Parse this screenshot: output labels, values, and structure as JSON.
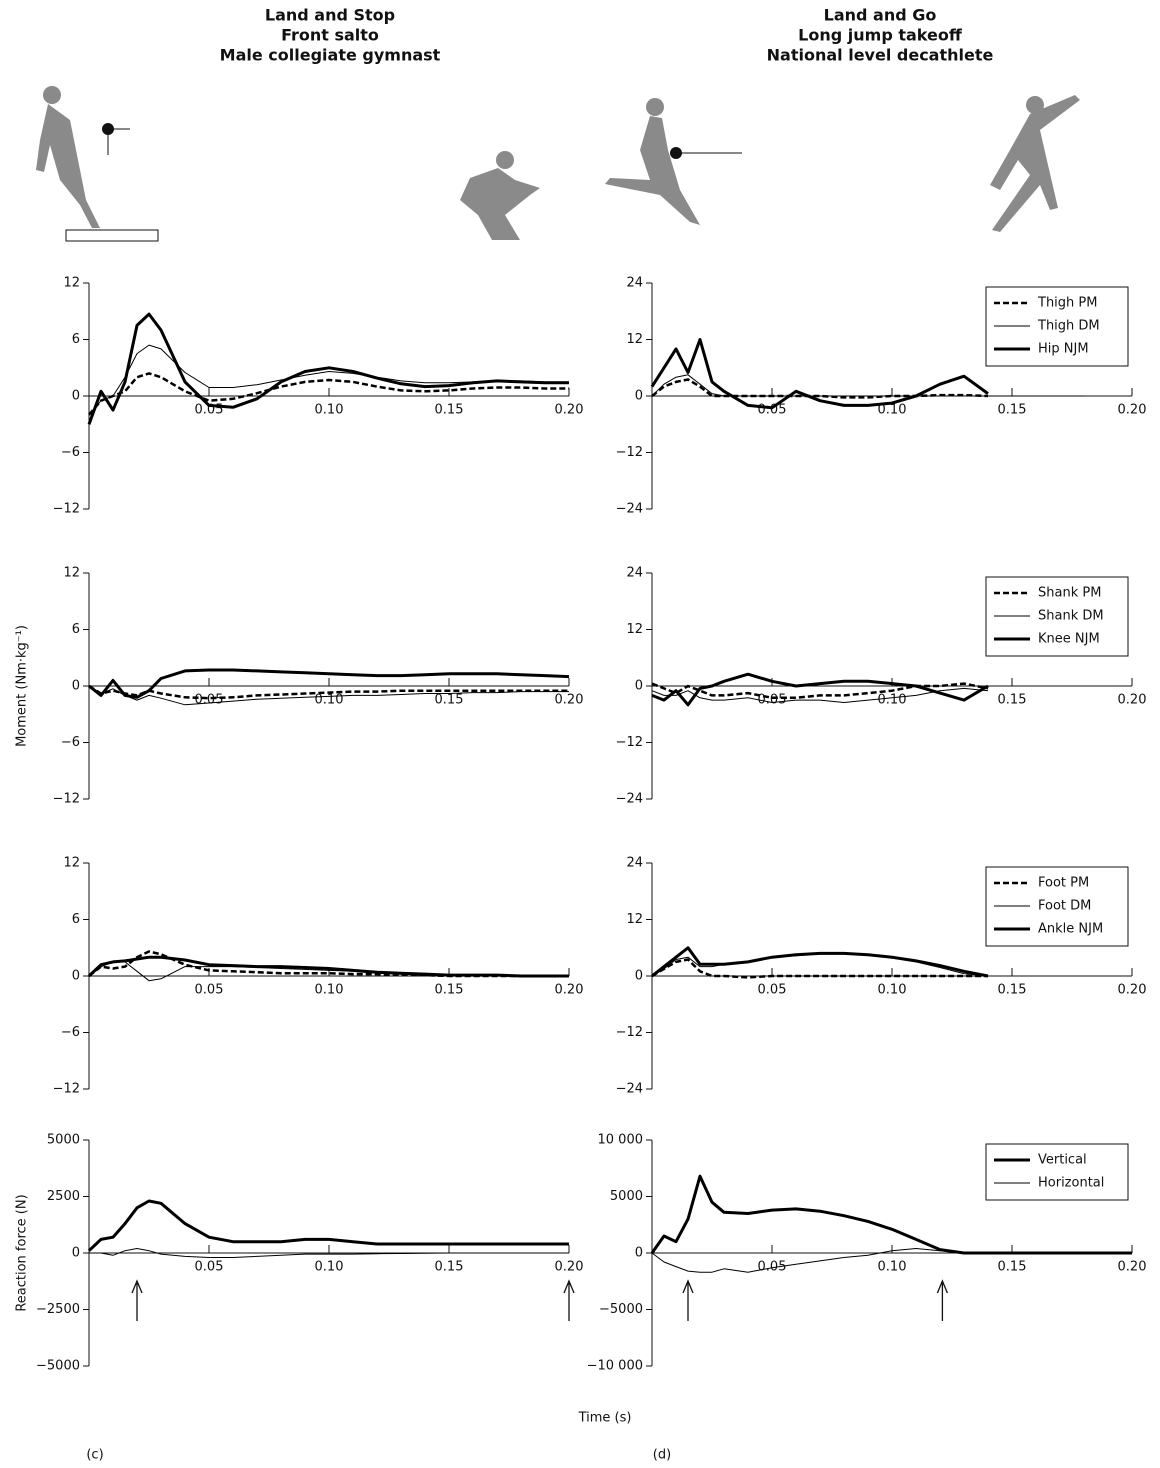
{
  "columns": [
    {
      "title": [
        "Land and Stop",
        "Front salto",
        "Male collegiate gymnast"
      ],
      "panel": "(c)"
    },
    {
      "title": [
        "Land and Go",
        "Long jump takeoff",
        "National level decathlete"
      ],
      "panel": "(d)"
    }
  ],
  "y_labels": {
    "moment": "Moment (Nm·kg⁻¹)",
    "force": "Reaction force (N)"
  },
  "x_label": "Time (s)",
  "chart_data": [
    {
      "type": "line",
      "x": [
        0,
        0.005,
        0.01,
        0.015,
        0.02,
        0.025,
        0.03,
        0.04,
        0.05,
        0.06,
        0.07,
        0.08,
        0.09,
        0.1,
        0.11,
        0.12,
        0.13,
        0.14,
        0.15,
        0.16,
        0.17,
        0.18,
        0.19,
        0.2
      ],
      "xlim": [
        0,
        0.2
      ],
      "xticks": [
        0.05,
        {
          "value": 0.1,
          "label": "0.10"
        },
        0.15,
        {
          "value": 0.2,
          "label": "0.20"
        }
      ],
      "ylim": [
        -12,
        12
      ],
      "yticks": [
        12,
        6,
        0,
        {
          "value": -6,
          "label": "−6"
        },
        {
          "value": -12,
          "label": "−12"
        }
      ],
      "series": [
        {
          "color": "#000",
          "width": 2.5,
          "dash": true,
          "values": [
            -2,
            -0.5,
            0,
            0.5,
            2,
            2.4,
            2,
            0.5,
            -0.5,
            -0.3,
            0.3,
            1,
            1.5,
            1.7,
            1.5,
            1,
            0.6,
            0.5,
            0.6,
            0.8,
            0.9,
            0.9,
            0.8,
            0.8
          ]
        },
        {
          "color": "#000",
          "width": 1,
          "dash": false,
          "values": [
            -2,
            -0.5,
            0,
            2,
            4.5,
            5.4,
            5,
            2.5,
            0.9,
            0.9,
            1.2,
            1.7,
            2.2,
            2.6,
            2.4,
            2,
            1.6,
            1.4,
            1.4,
            1.5,
            1.6,
            1.6,
            1.5,
            1.5
          ]
        },
        {
          "color": "#000",
          "width": 3,
          "dash": false,
          "values": [
            -3,
            0.5,
            -1.5,
            1.5,
            7.5,
            8.7,
            7,
            1.5,
            -1,
            -1.2,
            -0.3,
            1.5,
            2.6,
            3,
            2.6,
            1.9,
            1.3,
            1,
            1.1,
            1.4,
            1.6,
            1.5,
            1.4,
            1.4
          ]
        }
      ]
    },
    {
      "type": "line",
      "x": [
        0,
        0.005,
        0.01,
        0.015,
        0.02,
        0.025,
        0.03,
        0.04,
        0.05,
        0.06,
        0.07,
        0.08,
        0.09,
        0.1,
        0.11,
        0.12,
        0.13,
        0.14,
        0.15,
        0.16,
        0.17,
        0.18,
        0.19,
        0.2
      ],
      "xlim": [
        0,
        0.2
      ],
      "xticks": [
        0.05,
        {
          "value": 0.1,
          "label": "0.10"
        },
        0.15,
        {
          "value": 0.2,
          "label": "0.20"
        }
      ],
      "ylim": [
        -24,
        24
      ],
      "yticks": [
        24,
        12,
        0,
        {
          "value": -12,
          "label": "−12"
        },
        {
          "value": -24,
          "label": "−24"
        }
      ],
      "legend": "upper right",
      "series": [
        {
          "name": "Thigh PM",
          "color": "#000",
          "width": 2.5,
          "dash": true,
          "values": [
            0,
            2,
            3,
            3.5,
            2,
            0,
            0,
            0,
            0,
            0,
            0,
            -0.3,
            -0.3,
            0,
            0,
            0.2,
            0.2,
            0,
            null,
            null,
            null,
            null,
            null,
            null
          ]
        },
        {
          "name": "Thigh DM",
          "color": "#000",
          "width": 1,
          "dash": false,
          "values": [
            0,
            2.5,
            4,
            4.5,
            2.5,
            0.5,
            0,
            0,
            0,
            0,
            0,
            0,
            0,
            0,
            0,
            0,
            0,
            0,
            0,
            0,
            0,
            0,
            null,
            null
          ]
        },
        {
          "name": "Hip NJM",
          "color": "#000",
          "width": 3,
          "dash": false,
          "values": [
            2,
            6,
            10,
            5,
            12,
            3,
            1,
            -2,
            -2.5,
            1,
            -1,
            -2,
            -2,
            -1.5,
            0,
            2.5,
            4.2,
            0.5,
            null,
            null,
            null,
            null,
            null,
            null
          ]
        }
      ]
    },
    {
      "type": "line",
      "x": [
        0,
        0.005,
        0.01,
        0.015,
        0.02,
        0.025,
        0.03,
        0.04,
        0.05,
        0.06,
        0.07,
        0.08,
        0.09,
        0.1,
        0.11,
        0.12,
        0.13,
        0.14,
        0.15,
        0.16,
        0.17,
        0.18,
        0.19,
        0.2
      ],
      "xlim": [
        0,
        0.2
      ],
      "xticks": [
        0.05,
        {
          "value": 0.1,
          "label": "0.10"
        },
        0.15,
        {
          "value": 0.2,
          "label": "0.20"
        }
      ],
      "ylim": [
        -12,
        12
      ],
      "yticks": [
        12,
        6,
        0,
        {
          "value": -6,
          "label": "−6"
        },
        {
          "value": -12,
          "label": "−12"
        }
      ],
      "series": [
        {
          "color": "#000",
          "width": 2.5,
          "dash": true,
          "values": [
            0,
            -0.8,
            -0.5,
            -0.8,
            -1,
            -0.5,
            -0.8,
            -1.2,
            -1.3,
            -1.2,
            -1,
            -0.9,
            -0.8,
            -0.7,
            -0.6,
            -0.6,
            -0.5,
            -0.5,
            -0.5,
            -0.5,
            -0.5,
            -0.5,
            -0.5,
            -0.5
          ]
        },
        {
          "color": "#000",
          "width": 1,
          "dash": false,
          "values": [
            0,
            -0.8,
            -0.3,
            -1,
            -1.5,
            -1,
            -1.3,
            -2,
            -1.8,
            -1.6,
            -1.4,
            -1.3,
            -1.2,
            -1.1,
            -1,
            -1,
            -0.9,
            -0.8,
            -0.8,
            -0.7,
            -0.7,
            -0.6,
            -0.6,
            -0.6
          ]
        },
        {
          "color": "#000",
          "width": 3,
          "dash": false,
          "values": [
            0,
            -1,
            0.6,
            -1,
            -1.2,
            -0.5,
            0.8,
            1.6,
            1.7,
            1.7,
            1.6,
            1.5,
            1.4,
            1.3,
            1.2,
            1.1,
            1.1,
            1.2,
            1.3,
            1.3,
            1.3,
            1.2,
            1.1,
            1
          ]
        }
      ]
    },
    {
      "type": "line",
      "x": [
        0,
        0.005,
        0.01,
        0.015,
        0.02,
        0.025,
        0.03,
        0.04,
        0.05,
        0.06,
        0.07,
        0.08,
        0.09,
        0.1,
        0.11,
        0.12,
        0.13,
        0.14,
        0.15,
        0.16,
        0.17,
        0.18,
        0.19,
        0.2
      ],
      "xlim": [
        0,
        0.2
      ],
      "xticks": [
        0.05,
        {
          "value": 0.1,
          "label": "0.10"
        },
        0.15,
        {
          "value": 0.2,
          "label": "0.20"
        }
      ],
      "ylim": [
        -24,
        24
      ],
      "yticks": [
        24,
        12,
        0,
        {
          "value": -12,
          "label": "−12"
        },
        {
          "value": -24,
          "label": "−24"
        }
      ],
      "legend": "upper right",
      "series": [
        {
          "name": "Shank PM",
          "color": "#000",
          "width": 2.5,
          "dash": true,
          "values": [
            0.5,
            -0.5,
            -1.5,
            0,
            -1,
            -2,
            -2,
            -1.5,
            -2.5,
            -2.5,
            -2,
            -2,
            -1.5,
            -1,
            0,
            0,
            0.5,
            -0.5,
            null,
            null,
            null,
            null,
            null,
            null
          ]
        },
        {
          "name": "Shank DM",
          "color": "#000",
          "width": 1,
          "dash": false,
          "values": [
            -1,
            -2,
            -2,
            -1,
            -2.5,
            -3,
            -3,
            -2.5,
            -3.5,
            -3,
            -3,
            -3.5,
            -3,
            -2.5,
            -2,
            -1,
            -0.5,
            -1,
            null,
            null,
            null,
            null,
            null,
            null
          ]
        },
        {
          "name": "Knee NJM",
          "color": "#000",
          "width": 3,
          "dash": false,
          "values": [
            -2,
            -3,
            -1,
            -4,
            -0.5,
            0,
            1,
            2.5,
            1,
            0,
            0.5,
            1,
            1,
            0.5,
            0,
            -1.5,
            -3,
            0,
            null,
            null,
            null,
            null,
            null,
            null
          ]
        }
      ]
    },
    {
      "type": "line",
      "x": [
        0,
        0.005,
        0.01,
        0.015,
        0.02,
        0.025,
        0.03,
        0.04,
        0.05,
        0.06,
        0.07,
        0.08,
        0.09,
        0.1,
        0.11,
        0.12,
        0.13,
        0.14,
        0.15,
        0.16,
        0.17,
        0.18,
        0.19,
        0.2
      ],
      "xlim": [
        0,
        0.2
      ],
      "xticks": [
        0.05,
        {
          "value": 0.1,
          "label": "0.10"
        },
        0.15,
        {
          "value": 0.2,
          "label": "0.20"
        }
      ],
      "ylim": [
        -12,
        12
      ],
      "yticks": [
        12,
        6,
        0,
        {
          "value": -6,
          "label": "−6"
        },
        {
          "value": -12,
          "label": "−12"
        }
      ],
      "series": [
        {
          "color": "#000",
          "width": 2.5,
          "dash": true,
          "values": [
            0,
            1,
            0.8,
            1,
            2,
            2.6,
            2.3,
            1.2,
            0.6,
            0.5,
            0.4,
            0.3,
            0.3,
            0.3,
            0.2,
            0.2,
            0.1,
            0.1,
            0,
            0,
            0,
            0,
            0,
            0
          ]
        },
        {
          "color": "#000",
          "width": 1,
          "dash": false,
          "values": [
            0,
            1,
            1.5,
            1.5,
            0.5,
            -0.5,
            -0.3,
            1,
            1,
            1,
            0.9,
            0.8,
            0.7,
            0.6,
            0.5,
            0.3,
            0.2,
            0.1,
            0.1,
            0,
            0,
            0,
            0,
            0
          ]
        },
        {
          "color": "#000",
          "width": 3,
          "dash": false,
          "values": [
            0,
            1.2,
            1.5,
            1.6,
            1.8,
            2,
            2,
            1.7,
            1.2,
            1.1,
            1,
            1,
            0.9,
            0.8,
            0.6,
            0.4,
            0.3,
            0.2,
            0.1,
            0.1,
            0.1,
            0,
            0,
            0
          ]
        }
      ]
    },
    {
      "type": "line",
      "x": [
        0,
        0.005,
        0.01,
        0.015,
        0.02,
        0.025,
        0.03,
        0.04,
        0.05,
        0.06,
        0.07,
        0.08,
        0.09,
        0.1,
        0.11,
        0.12,
        0.13,
        0.14,
        0.15,
        0.16,
        0.17,
        0.18,
        0.19,
        0.2
      ],
      "xlim": [
        0,
        0.2
      ],
      "xticks": [
        0.05,
        {
          "value": 0.1,
          "label": "0.10"
        },
        0.15,
        {
          "value": 0.2,
          "label": "0.20"
        }
      ],
      "ylim": [
        -24,
        24
      ],
      "yticks": [
        24,
        12,
        0,
        {
          "value": -12,
          "label": "−12"
        },
        {
          "value": -24,
          "label": "−24"
        }
      ],
      "legend": "upper right",
      "series": [
        {
          "name": "Foot PM",
          "color": "#000",
          "width": 2.5,
          "dash": true,
          "values": [
            0,
            1.5,
            3,
            3.5,
            1,
            0,
            0,
            -0.3,
            0,
            0,
            0,
            0,
            0,
            0,
            0,
            0,
            0,
            0,
            null,
            null,
            null,
            null,
            null,
            null
          ]
        },
        {
          "name": "Foot DM",
          "color": "#000",
          "width": 1,
          "dash": false,
          "values": [
            0,
            1.5,
            3.5,
            4,
            2,
            2,
            2.5,
            3,
            4,
            4.3,
            4.7,
            4.7,
            4.4,
            3.8,
            3,
            1.8,
            0.5,
            0,
            null,
            null,
            null,
            null,
            null,
            null
          ]
        },
        {
          "name": "Ankle NJM",
          "color": "#000",
          "width": 3,
          "dash": false,
          "values": [
            0,
            2,
            4,
            6,
            2.5,
            2.5,
            2.5,
            3,
            4,
            4.5,
            4.8,
            4.8,
            4.5,
            4,
            3.2,
            2.2,
            1,
            0,
            null,
            null,
            null,
            null,
            null,
            null
          ]
        }
      ]
    },
    {
      "type": "line",
      "x": [
        0,
        0.005,
        0.01,
        0.015,
        0.02,
        0.025,
        0.03,
        0.04,
        0.05,
        0.06,
        0.07,
        0.08,
        0.09,
        0.1,
        0.11,
        0.12,
        0.13,
        0.14,
        0.15,
        0.16,
        0.17,
        0.18,
        0.19,
        0.2
      ],
      "xlim": [
        0,
        0.2
      ],
      "xticks": [
        0.05,
        {
          "value": 0.1,
          "label": "0.10"
        },
        0.15,
        {
          "value": 0.2,
          "label": "0.20"
        }
      ],
      "ylim": [
        -5000,
        5000
      ],
      "yticks": [
        5000,
        2500,
        0,
        {
          "value": -2500,
          "label": "−2500"
        },
        {
          "value": -5000,
          "label": "−5000"
        }
      ],
      "markers": [
        0.02,
        0.2
      ],
      "series": [
        {
          "color": "#000",
          "width": 3,
          "dash": false,
          "values": [
            100,
            600,
            700,
            1300,
            2000,
            2300,
            2200,
            1300,
            700,
            500,
            500,
            500,
            600,
            600,
            500,
            400,
            400,
            400,
            400,
            400,
            400,
            400,
            400,
            400
          ]
        },
        {
          "color": "#000",
          "width": 1,
          "dash": false,
          "values": [
            0,
            0,
            -100,
            100,
            200,
            100,
            -50,
            -150,
            -200,
            -200,
            -150,
            -100,
            -50,
            -50,
            -50,
            -30,
            -20,
            -10,
            0,
            0,
            0,
            0,
            0,
            0
          ]
        }
      ]
    },
    {
      "type": "line",
      "x": [
        0,
        0.005,
        0.01,
        0.015,
        0.02,
        0.025,
        0.03,
        0.04,
        0.05,
        0.06,
        0.07,
        0.08,
        0.09,
        0.1,
        0.11,
        0.12,
        0.13,
        0.14,
        0.15,
        0.16,
        0.17,
        0.18,
        0.19,
        0.2
      ],
      "xlim": [
        0,
        0.2
      ],
      "xticks": [
        0.05,
        {
          "value": 0.1,
          "label": "0.10"
        },
        0.15,
        {
          "value": 0.2,
          "label": "0.20"
        }
      ],
      "ylim": [
        -10000,
        10000
      ],
      "yticks": [
        {
          "value": 10000,
          "label": "10 000"
        },
        5000,
        0,
        {
          "value": -5000,
          "label": "−5000"
        },
        {
          "value": -10000,
          "label": "−10 000"
        }
      ],
      "markers": [
        0.015,
        0.121
      ],
      "legend": "upper right",
      "series": [
        {
          "name": "Vertical",
          "color": "#000",
          "width": 3,
          "dash": false,
          "values": [
            0,
            1500,
            1000,
            3000,
            6800,
            4500,
            3600,
            3500,
            3800,
            3900,
            3700,
            3300,
            2800,
            2100,
            1200,
            300,
            0,
            0,
            0,
            0,
            0,
            0,
            0,
            0
          ]
        },
        {
          "name": "Horizontal",
          "color": "#000",
          "width": 1,
          "dash": false,
          "values": [
            0,
            -800,
            -1200,
            -1600,
            -1700,
            -1700,
            -1400,
            -1700,
            -1300,
            -1000,
            -700,
            -400,
            -200,
            200,
            400,
            200,
            0,
            0,
            0,
            0,
            0,
            0,
            0,
            0
          ]
        }
      ]
    }
  ]
}
